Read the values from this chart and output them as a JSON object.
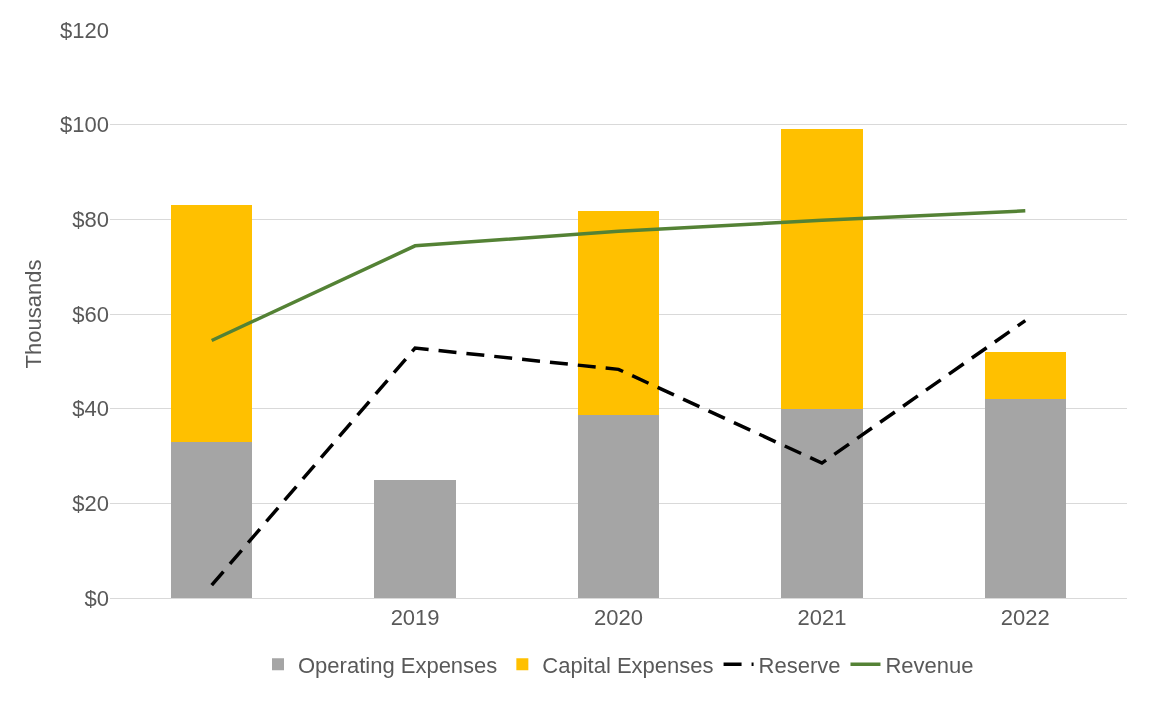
{
  "chart_data": {
    "type": "bar",
    "stacked": true,
    "categories": [
      null,
      "2019",
      "2020",
      "2021",
      "2022"
    ],
    "ylabel": "Thousands",
    "ylim": [
      0,
      120
    ],
    "yticks": [
      {
        "value": 0,
        "label": "$0"
      },
      {
        "value": 20,
        "label": "$20"
      },
      {
        "value": 40,
        "label": "$40"
      },
      {
        "value": 60,
        "label": "$60"
      },
      {
        "value": 80,
        "label": "$80"
      },
      {
        "value": 100,
        "label": "$100"
      },
      {
        "value": 120,
        "label": "$120"
      }
    ],
    "grid": "y",
    "legend": "bottom",
    "series": [
      {
        "name": "Operating Expenses",
        "color": "#a5a5a5",
        "values": [
          33,
          25,
          38.7,
          40,
          42
        ]
      },
      {
        "name": "Capital Expenses",
        "color": "#ffc000",
        "values": [
          50,
          0,
          43,
          59,
          10
        ]
      },
      {
        "name": "Reserve",
        "type": "line",
        "color": "#000000",
        "line_style": "dashed",
        "values": [
          2.7,
          52.8,
          48.3,
          28.5,
          58.6
        ]
      },
      {
        "name": "Revenue",
        "type": "line",
        "color": "#548235",
        "line_style": "solid",
        "values": [
          54.4,
          74.4,
          77.5,
          79.8,
          81.8
        ]
      }
    ]
  }
}
